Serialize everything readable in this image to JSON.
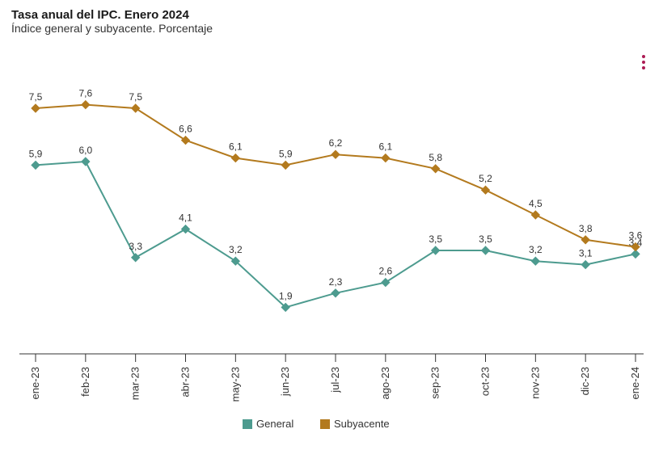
{
  "title": "Tasa anual del IPC. Enero 2024",
  "subtitle": "Índice general y subyacente. Porcentaje",
  "chart": {
    "type": "line",
    "categories": [
      "ene-23",
      "feb-23",
      "mar-23",
      "abr-23",
      "may-23",
      "jun-23",
      "jul-23",
      "ago-23",
      "sep-23",
      "oct-23",
      "nov-23",
      "dic-23",
      "ene-24"
    ],
    "series": [
      {
        "name": "General",
        "color": "#4d9b8f",
        "marker": "diamond",
        "values": [
          5.9,
          6.0,
          3.3,
          4.1,
          3.2,
          1.9,
          2.3,
          2.6,
          3.5,
          3.5,
          3.2,
          3.1,
          3.4
        ],
        "labels": [
          "5,9",
          "6,0",
          "3,3",
          "4,1",
          "3,2",
          "1,9",
          "2,3",
          "2,6",
          "3,5",
          "3,5",
          "3,2",
          "3,1",
          "3,4"
        ]
      },
      {
        "name": "Subyacente",
        "color": "#b37a1e",
        "marker": "diamond",
        "values": [
          7.5,
          7.6,
          7.5,
          6.6,
          6.1,
          5.9,
          6.2,
          6.1,
          5.8,
          5.2,
          4.5,
          3.8,
          3.6
        ],
        "labels": [
          "7,5",
          "7,6",
          "7,5",
          "6,6",
          "6,1",
          "5,9",
          "6,2",
          "6,1",
          "5,8",
          "5,2",
          "4,5",
          "3,8",
          "3,6"
        ]
      }
    ],
    "yrange": [
      1.0,
      8.5
    ],
    "line_width": 2,
    "marker_size": 5,
    "label_fontsize": 12,
    "axis_color": "#333333",
    "background_color": "#ffffff",
    "legend_position": "bottom",
    "legend_marker": "square"
  },
  "menu_color": "#ac1b54"
}
